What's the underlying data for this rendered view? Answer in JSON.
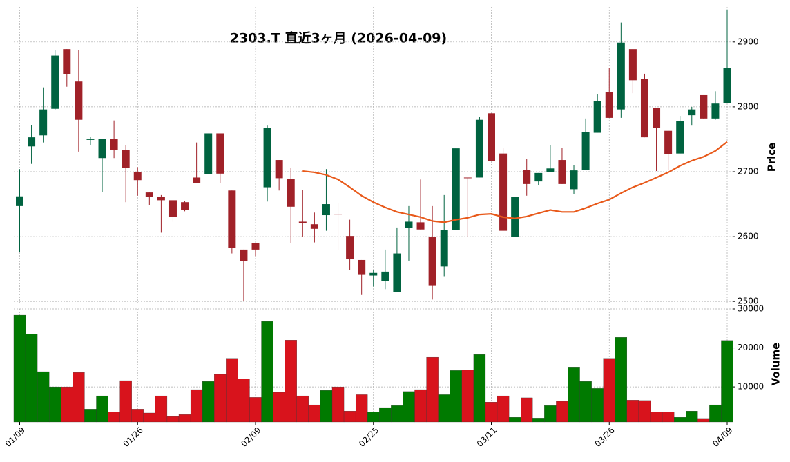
{
  "chart_data": {
    "type": "candlestick",
    "title": "2303.T  直近3ヶ月  (2026-04-09)",
    "ylabel": "Price",
    "categories": [
      "01/09",
      null,
      null,
      null,
      null,
      null,
      null,
      null,
      null,
      null,
      "01/26",
      null,
      null,
      null,
      null,
      null,
      null,
      null,
      null,
      null,
      "02/09",
      null,
      null,
      null,
      null,
      null,
      null,
      null,
      null,
      null,
      "02/25",
      null,
      null,
      null,
      null,
      null,
      null,
      null,
      null,
      null,
      "03/11",
      null,
      null,
      null,
      null,
      null,
      null,
      null,
      null,
      null,
      "03/26",
      null,
      null,
      null,
      null,
      null,
      null,
      null,
      null,
      null,
      "04/09"
    ],
    "open": [
      2647,
      2739,
      2756,
      2797,
      2889,
      2839,
      2749,
      2721,
      2750,
      2734,
      2700,
      2668,
      2661,
      2656,
      2653,
      2691,
      2696,
      2759,
      2671,
      2580,
      2590,
      2676,
      2718,
      2689,
      2623,
      2619,
      2633,
      2635,
      2601,
      2564,
      2540,
      2532,
      2515,
      2613,
      2622,
      2599,
      2554,
      2610,
      2691,
      2691,
      2790,
      2728,
      2600,
      2703,
      2685,
      2699,
      2718,
      2673,
      2703,
      2760,
      2823,
      2796,
      2889,
      2843,
      2798,
      2763,
      2728,
      2787,
      2818,
      2782,
      2806
    ],
    "high": [
      2704,
      2772,
      2830,
      2887,
      2889,
      2887,
      2754,
      2750,
      2779,
      2741,
      2707,
      2668,
      2664,
      2656,
      2655,
      2745,
      2759,
      2759,
      2671,
      2580,
      2590,
      2771,
      2718,
      2706,
      2672,
      2637,
      2704,
      2652,
      2626,
      2564,
      2549,
      2580,
      2614,
      2647,
      2688,
      2647,
      2664,
      2736,
      2691,
      2784,
      2790,
      2736,
      2661,
      2720,
      2698,
      2741,
      2737,
      2710,
      2782,
      2819,
      2860,
      2930,
      2889,
      2851,
      2798,
      2763,
      2786,
      2800,
      2818,
      2824,
      2950
    ],
    "low": [
      2576,
      2712,
      2745,
      2795,
      2831,
      2731,
      2741,
      2669,
      2721,
      2653,
      2663,
      2649,
      2606,
      2623,
      2639,
      2683,
      2696,
      2683,
      2574,
      2501,
      2570,
      2654,
      2671,
      2590,
      2600,
      2591,
      2609,
      2580,
      2549,
      2510,
      2523,
      2519,
      2515,
      2563,
      2611,
      2503,
      2539,
      2610,
      2600,
      2691,
      2716,
      2609,
      2600,
      2663,
      2679,
      2699,
      2681,
      2666,
      2703,
      2760,
      2783,
      2783,
      2821,
      2753,
      2701,
      2702,
      2728,
      2771,
      2782,
      2780,
      2806
    ],
    "close": [
      2662,
      2753,
      2796,
      2879,
      2850,
      2780,
      2751,
      2750,
      2734,
      2706,
      2687,
      2661,
      2656,
      2630,
      2641,
      2683,
      2759,
      2697,
      2583,
      2562,
      2580,
      2767,
      2690,
      2646,
      2621,
      2612,
      2650,
      2634,
      2565,
      2541,
      2544,
      2546,
      2574,
      2623,
      2611,
      2524,
      2610,
      2736,
      2690,
      2780,
      2716,
      2609,
      2661,
      2681,
      2698,
      2705,
      2681,
      2702,
      2761,
      2809,
      2783,
      2899,
      2841,
      2753,
      2767,
      2727,
      2778,
      2796,
      2782,
      2805,
      2860
    ],
    "up_color": "#006340",
    "down_color": "#a02128",
    "ma": {
      "color": "#e8591a",
      "values": [
        null,
        null,
        null,
        null,
        null,
        null,
        null,
        null,
        null,
        null,
        null,
        null,
        null,
        null,
        null,
        null,
        null,
        null,
        null,
        null,
        null,
        null,
        null,
        null,
        2701,
        2699,
        2695,
        2688,
        2676,
        2663,
        2653,
        2645,
        2638,
        2634,
        2630,
        2624,
        2622,
        2626,
        2629,
        2634,
        2635,
        2630,
        2628,
        2631,
        2636,
        2641,
        2638,
        2638,
        2644,
        2651,
        2657,
        2667,
        2676,
        2683,
        2691,
        2699,
        2709,
        2717,
        2723,
        2732,
        2746
      ]
    },
    "ylim": [
      2497,
      2954
    ],
    "yticks": [
      2500,
      2600,
      2700,
      2800,
      2900
    ],
    "grid": true,
    "volume": {
      "ylabel": "Volume",
      "up_color": "#007a00",
      "down_color": "#d8131c",
      "ylim": [
        1000,
        30000
      ],
      "yticks": [
        10000,
        20000,
        30000
      ],
      "values": [
        28400,
        23600,
        13900,
        10000,
        10000,
        13700,
        4300,
        7700,
        3600,
        11600,
        4300,
        3300,
        7700,
        2400,
        2900,
        9300,
        11400,
        13200,
        17300,
        12100,
        7300,
        26800,
        8600,
        22000,
        7700,
        5400,
        9100,
        10000,
        3800,
        8000,
        3600,
        4700,
        5200,
        8800,
        9300,
        17600,
        8000,
        14200,
        14400,
        18300,
        6100,
        7700,
        2200,
        7200,
        2000,
        5200,
        6300,
        15100,
        11400,
        9600,
        17300,
        22700,
        6600,
        6500,
        3600,
        3600,
        2200,
        3800,
        1900,
        5400,
        21900
      ]
    }
  }
}
